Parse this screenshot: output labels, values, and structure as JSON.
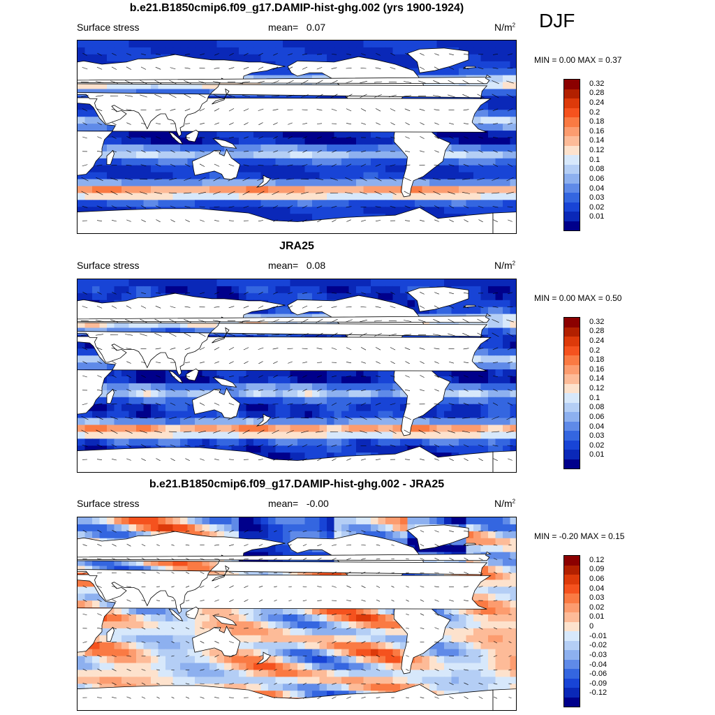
{
  "season": "DJF",
  "panels": [
    {
      "title": "b.e21.B1850cmip6.f09_g17.DAMIP-hist-ghg.002 (yrs 1900-1924)",
      "left_label": "Surface stress",
      "mean_label": "mean=",
      "mean_value": "0.07",
      "units": "N/m",
      "units_sup": "2",
      "min_label": "MIN =",
      "min_value": "0.00",
      "max_label": "MAX =",
      "max_value": "0.37",
      "levels": [
        "0.32",
        "0.28",
        "0.24",
        "0.2",
        "0.18",
        "0.16",
        "0.14",
        "0.12",
        "0.1",
        "0.08",
        "0.06",
        "0.04",
        "0.03",
        "0.02",
        "0.01"
      ]
    },
    {
      "title": "JRA25",
      "left_label": "Surface stress",
      "mean_label": "mean=",
      "mean_value": "0.08",
      "units": "N/m",
      "units_sup": "2",
      "min_label": "MIN =",
      "min_value": "0.00",
      "max_label": "MAX =",
      "max_value": "0.50",
      "levels": [
        "0.32",
        "0.28",
        "0.24",
        "0.2",
        "0.18",
        "0.16",
        "0.14",
        "0.12",
        "0.1",
        "0.08",
        "0.06",
        "0.04",
        "0.03",
        "0.02",
        "0.01"
      ]
    },
    {
      "title": "b.e21.B1850cmip6.f09_g17.DAMIP-hist-ghg.002 - JRA25",
      "left_label": "Surface stress",
      "mean_label": "mean=",
      "mean_value": "-0.00",
      "units": "N/m",
      "units_sup": "2",
      "min_label": "MIN =",
      "min_value": "-0.20",
      "max_label": "MAX =",
      "max_value": "0.15",
      "levels": [
        "0.12",
        "0.09",
        "0.06",
        "0.04",
        "0.03",
        "0.02",
        "0.01",
        "0",
        "-0.01",
        "-0.02",
        "-0.03",
        "-0.04",
        "-0.06",
        "-0.09",
        "-0.12"
      ]
    }
  ],
  "colors": {
    "palette": [
      "#8b0000",
      "#b22000",
      "#dd3a0a",
      "#f5521e",
      "#fa7a43",
      "#fc9c6f",
      "#fdbb98",
      "#fde2cd",
      "#d7e8fb",
      "#b4cef5",
      "#8db0ef",
      "#5f8ae8",
      "#3466e0",
      "#1844d6",
      "#0a28b8",
      "#00008b"
    ],
    "land": "#ffffff",
    "coast": "#000000"
  }
}
